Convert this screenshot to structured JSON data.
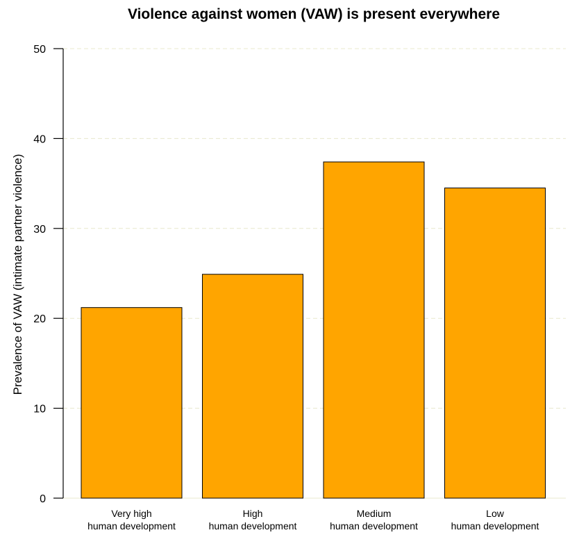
{
  "chart_data": {
    "type": "bar",
    "title": "Violence against women (VAW) is present everywhere",
    "xlabel": "",
    "ylabel": "Prevalence of VAW (intimate partner violence)",
    "categories": [
      [
        "Very high",
        "human development"
      ],
      [
        "High",
        "human development"
      ],
      [
        "Medium",
        "human development"
      ],
      [
        "Low",
        "human development"
      ]
    ],
    "values": [
      21.2,
      24.9,
      37.4,
      34.5
    ],
    "ylim": [
      0,
      50
    ],
    "yticks": [
      0,
      10,
      20,
      30,
      40,
      50
    ],
    "grid": true,
    "bar_color": "#FFA500"
  }
}
